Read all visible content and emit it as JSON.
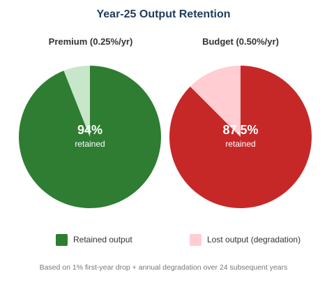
{
  "chart_data": {
    "type": "pie",
    "title": "Year-25 Output Retention",
    "charts": [
      {
        "name": "Premium (0.25%/yr)",
        "retained_pct": 94,
        "value_label": "94%",
        "sub_label": "retained",
        "slices": [
          {
            "label": "Retained output",
            "value": 94,
            "color": "#2e7d32"
          },
          {
            "label": "Lost output (degradation)",
            "value": 6,
            "color": "#c8e6c9"
          }
        ]
      },
      {
        "name": "Budget (0.50%/yr)",
        "retained_pct": 87.5,
        "value_label": "87.5%",
        "sub_label": "retained",
        "slices": [
          {
            "label": "Retained output",
            "value": 87.5,
            "color": "#c62828"
          },
          {
            "label": "Lost output (degradation)",
            "value": 12.5,
            "color": "#ffcdd2"
          }
        ]
      }
    ],
    "legend": [
      {
        "label": "Retained output",
        "color": "#2e7d32"
      },
      {
        "label": "Lost output (degradation)",
        "color": "#ffcdd2"
      }
    ],
    "legend_position": "bottom",
    "footnote": "Based on 1% first-year drop + annual degradation over 24 subsequent years"
  }
}
